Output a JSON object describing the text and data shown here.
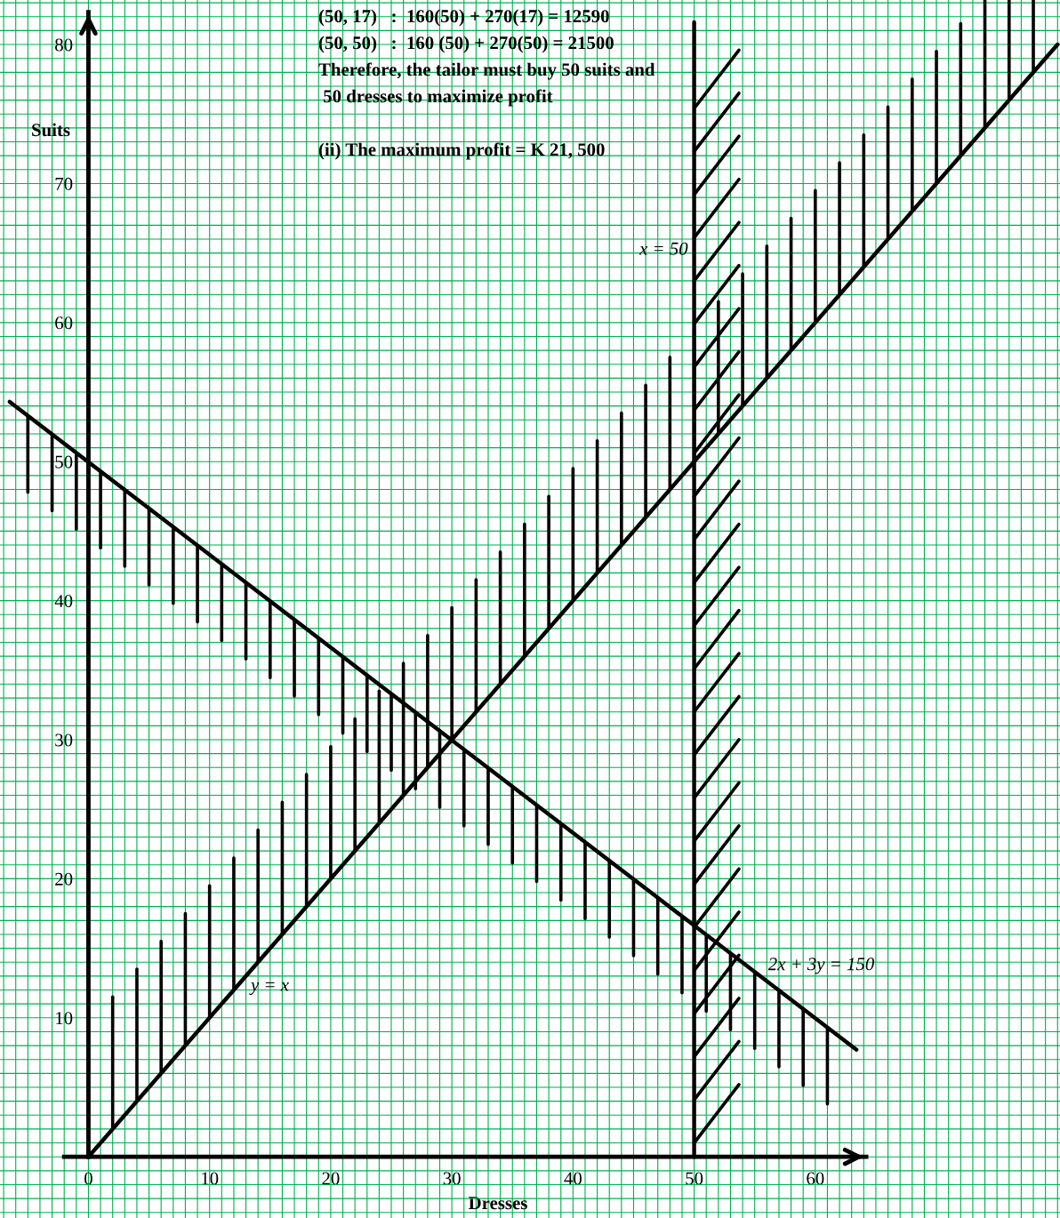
{
  "chart_data": {
    "type": "line",
    "xlabel": "Dresses",
    "ylabel": "Suits",
    "series": [
      {
        "color": "#000000",
        "x": [
          0,
          80
        ],
        "values": [
          0,
          80
        ]
      },
      {
        "color": "#000000",
        "x": [
          -6.5,
          63.4
        ],
        "values": [
          54.3,
          7.7
        ]
      },
      {
        "color": "#000000",
        "x": [
          50,
          50
        ],
        "values": [
          0,
          81.6
        ]
      }
    ],
    "annotations": [
      "(50, 17)   :  160(50) + 270(17) = 12590",
      "(50, 50)   :  160 (50) + 270(50) = 21500",
      "Therefore, the tailor must buy 50 suits and",
      " 50 dresses to maximize profit",
      "(ii) The maximum profit = K 21, 500",
      {
        "text": "y = x",
        "x": 13.3,
        "y": 13.3
      },
      {
        "text": "2x + 3y = 150",
        "x": 56.0,
        "y": 12.7
      },
      {
        "text": "x = 50",
        "x": 50,
        "y": 65.2
      }
    ],
    "xlim": [
      -7.3,
      80.2
    ],
    "ylim": [
      -4.4,
      83.2
    ],
    "xticks": [
      {
        "value": -7,
        "label": null
      },
      {
        "value": -6,
        "label": null
      },
      {
        "value": -5,
        "label": null
      },
      {
        "value": -4,
        "label": null
      },
      {
        "value": -3,
        "label": null
      },
      {
        "value": -2,
        "label": null
      },
      {
        "value": -1,
        "label": null
      },
      0,
      {
        "value": 1,
        "label": null
      },
      {
        "value": 2,
        "label": null
      },
      {
        "value": 3,
        "label": null
      },
      {
        "value": 4,
        "label": null
      },
      {
        "value": 5,
        "label": null
      },
      {
        "value": 6,
        "label": null
      },
      {
        "value": 7,
        "label": null
      },
      {
        "value": 8,
        "label": null
      },
      {
        "value": 9,
        "label": null
      },
      10,
      {
        "value": 11,
        "label": null
      },
      {
        "value": 12,
        "label": null
      },
      {
        "value": 13,
        "label": null
      },
      {
        "value": 14,
        "label": null
      },
      {
        "value": 15,
        "label": null
      },
      {
        "value": 16,
        "label": null
      },
      {
        "value": 17,
        "label": null
      },
      {
        "value": 18,
        "label": null
      },
      {
        "value": 19,
        "label": null
      },
      20,
      {
        "value": 21,
        "label": null
      },
      {
        "value": 22,
        "label": null
      },
      {
        "value": 23,
        "label": null
      },
      {
        "value": 24,
        "label": null
      },
      {
        "value": 25,
        "label": null
      },
      {
        "value": 26,
        "label": null
      },
      {
        "value": 27,
        "label": null
      },
      {
        "value": 28,
        "label": null
      },
      {
        "value": 29,
        "label": null
      },
      30,
      {
        "value": 31,
        "label": null
      },
      {
        "value": 32,
        "label": null
      },
      {
        "value": 33,
        "label": null
      },
      {
        "value": 34,
        "label": null
      },
      {
        "value": 35,
        "label": null
      },
      {
        "value": 36,
        "label": null
      },
      {
        "value": 37,
        "label": null
      },
      {
        "value": 38,
        "label": null
      },
      {
        "value": 39,
        "label": null
      },
      40,
      {
        "value": 41,
        "label": null
      },
      {
        "value": 42,
        "label": null
      },
      {
        "value": 43,
        "label": null
      },
      {
        "value": 44,
        "label": null
      },
      {
        "value": 45,
        "label": null
      },
      {
        "value": 46,
        "label": null
      },
      {
        "value": 47,
        "label": null
      },
      {
        "value": 48,
        "label": null
      },
      {
        "value": 49,
        "label": null
      },
      50,
      {
        "value": 51,
        "label": null
      },
      {
        "value": 52,
        "label": null
      },
      {
        "value": 53,
        "label": null
      },
      {
        "value": 54,
        "label": null
      },
      {
        "value": 55,
        "label": null
      },
      {
        "value": 56,
        "label": null
      },
      {
        "value": 57,
        "label": null
      },
      {
        "value": 58,
        "label": null
      },
      {
        "value": 59,
        "label": null
      },
      60,
      {
        "value": 61,
        "label": null
      },
      {
        "value": 62,
        "label": null
      },
      {
        "value": 63,
        "label": null
      },
      {
        "value": 64,
        "label": null
      },
      {
        "value": 65,
        "label": null
      },
      {
        "value": 66,
        "label": null
      },
      {
        "value": 67,
        "label": null
      },
      {
        "value": 68,
        "label": null
      },
      {
        "value": 69,
        "label": null
      },
      {
        "value": 70,
        "label": null
      },
      {
        "value": 71,
        "label": null
      },
      {
        "value": 72,
        "label": null
      },
      {
        "value": 73,
        "label": null
      },
      {
        "value": 74,
        "label": null
      },
      {
        "value": 75,
        "label": null
      },
      {
        "value": 76,
        "label": null
      },
      {
        "value": 77,
        "label": null
      },
      {
        "value": 78,
        "label": null
      },
      {
        "value": 79,
        "label": null
      },
      {
        "value": 80,
        "label": null
      }
    ],
    "yticks": [
      {
        "value": -4,
        "label": null
      },
      {
        "value": -3,
        "label": null
      },
      {
        "value": -2,
        "label": null
      },
      {
        "value": -1,
        "label": null
      },
      {
        "value": 0,
        "label": null
      },
      {
        "value": 1,
        "label": null
      },
      {
        "value": 2,
        "label": null
      },
      {
        "value": 3,
        "label": null
      },
      {
        "value": 4,
        "label": null
      },
      {
        "value": 5,
        "label": null
      },
      {
        "value": 6,
        "label": null
      },
      {
        "value": 7,
        "label": null
      },
      {
        "value": 8,
        "label": null
      },
      {
        "value": 9,
        "label": null
      },
      10,
      {
        "value": 11,
        "label": null
      },
      {
        "value": 12,
        "label": null
      },
      {
        "value": 13,
        "label": null
      },
      {
        "value": 14,
        "label": null
      },
      {
        "value": 15,
        "label": null
      },
      {
        "value": 16,
        "label": null
      },
      {
        "value": 17,
        "label": null
      },
      {
        "value": 18,
        "label": null
      },
      {
        "value": 19,
        "label": null
      },
      20,
      {
        "value": 21,
        "label": null
      },
      {
        "value": 22,
        "label": null
      },
      {
        "value": 23,
        "label": null
      },
      {
        "value": 24,
        "label": null
      },
      {
        "value": 25,
        "label": null
      },
      {
        "value": 26,
        "label": null
      },
      {
        "value": 27,
        "label": null
      },
      {
        "value": 28,
        "label": null
      },
      {
        "value": 29,
        "label": null
      },
      30,
      {
        "value": 31,
        "label": null
      },
      {
        "value": 32,
        "label": null
      },
      {
        "value": 33,
        "label": null
      },
      {
        "value": 34,
        "label": null
      },
      {
        "value": 35,
        "label": null
      },
      {
        "value": 36,
        "label": null
      },
      {
        "value": 37,
        "label": null
      },
      {
        "value": 38,
        "label": null
      },
      {
        "value": 39,
        "label": null
      },
      40,
      {
        "value": 41,
        "label": null
      },
      {
        "value": 42,
        "label": null
      },
      {
        "value": 43,
        "label": null
      },
      {
        "value": 44,
        "label": null
      },
      {
        "value": 45,
        "label": null
      },
      {
        "value": 46,
        "label": null
      },
      {
        "value": 47,
        "label": null
      },
      {
        "value": 48,
        "label": null
      },
      {
        "value": 49,
        "label": null
      },
      50,
      {
        "value": 51,
        "label": null
      },
      {
        "value": 52,
        "label": null
      },
      {
        "value": 53,
        "label": null
      },
      {
        "value": 54,
        "label": null
      },
      {
        "value": 55,
        "label": null
      },
      {
        "value": 56,
        "label": null
      },
      {
        "value": 57,
        "label": null
      },
      {
        "value": 58,
        "label": null
      },
      {
        "value": 59,
        "label": null
      },
      60,
      {
        "value": 61,
        "label": null
      },
      {
        "value": 62,
        "label": null
      },
      {
        "value": 63,
        "label": null
      },
      {
        "value": 64,
        "label": null
      },
      {
        "value": 65,
        "label": null
      },
      {
        "value": 66,
        "label": null
      },
      {
        "value": 67,
        "label": null
      },
      {
        "value": 68,
        "label": null
      },
      {
        "value": 69,
        "label": null
      },
      70,
      {
        "value": 71,
        "label": null
      },
      {
        "value": 72,
        "label": null
      },
      {
        "value": 73,
        "label": null
      },
      {
        "value": 74,
        "label": null
      },
      {
        "value": 75,
        "label": null
      },
      {
        "value": 76,
        "label": null
      },
      {
        "value": 77,
        "label": null
      },
      {
        "value": 78,
        "label": null
      },
      {
        "value": 79,
        "label": null
      },
      80,
      {
        "value": 81,
        "label": null
      },
      {
        "value": 82,
        "label": null
      },
      {
        "value": 83,
        "label": null
      }
    ],
    "grid": true,
    "line_style": "solid"
  }
}
